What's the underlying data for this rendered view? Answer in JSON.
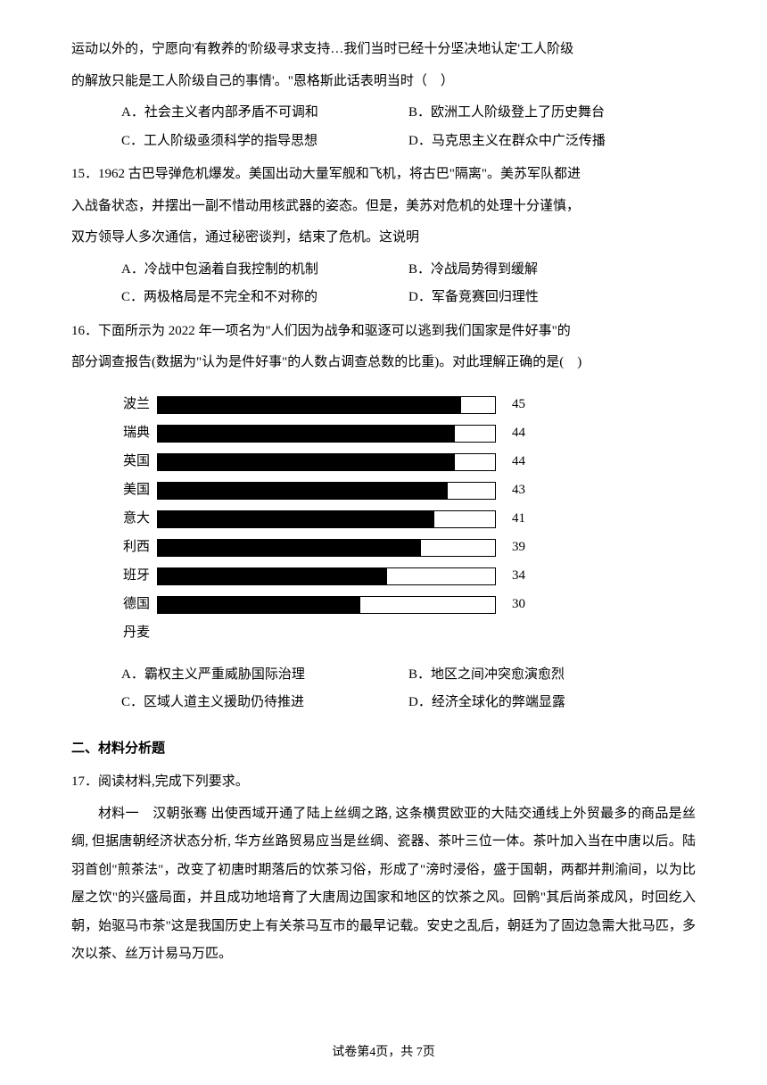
{
  "intro_lines": [
    "运动以外的，宁愿向'有教养的'阶级寻求支持…我们当时已经十分坚决地认定'工人阶级",
    "的解放只能是工人阶级自己的事情'。\"恩格斯此话表明当时（　）"
  ],
  "q14_options": {
    "a": "A．社会主义者内部矛盾不可调和",
    "b": "B．欧洲工人阶级登上了历史舞台",
    "c": "C．工人阶级亟须科学的指导思想",
    "d": "D．马克思主义在群众中广泛传播"
  },
  "q15_lines": [
    "15．1962 古巴导弹危机爆发。美国出动大量军舰和飞机，将古巴\"隔离\"。美苏军队都进",
    "入战备状态，并摆出一副不惜动用核武器的姿态。但是，美苏对危机的处理十分谨慎，",
    "双方领导人多次通信，通过秘密谈判，结束了危机。这说明"
  ],
  "q15_options": {
    "a": "A．冷战中包涵着自我控制的机制",
    "b": "B．冷战局势得到缓解",
    "c": "C．两极格局是不完全和不对称的",
    "d": "D．军备竞赛回归理性"
  },
  "q16_lines": [
    "16．下面所示为 2022 年一项名为\"人们因为战争和驱逐可以逃到我们国家是件好事\"的",
    "部分调查报告(数据为\"认为是件好事\"的人数占调查总数的比重)。对此理解正确的是(　)"
  ],
  "chart": {
    "max": 50,
    "track_width": 380,
    "bar_color": "#000000",
    "track_bg": "#ffffff",
    "border_color": "#000000",
    "label_fontsize": 15,
    "rows": [
      {
        "label": "波兰",
        "value": 45
      },
      {
        "label": "瑞典",
        "value": 44
      },
      {
        "label": "英国",
        "value": 44
      },
      {
        "label": "美国",
        "value": 43
      },
      {
        "label": "意大",
        "value": 41
      },
      {
        "label": "利西",
        "value": 39
      },
      {
        "label": "班牙",
        "value": 34
      },
      {
        "label": "德国",
        "value": 30
      },
      {
        "label": "丹麦",
        "value": null
      }
    ]
  },
  "q16_options": {
    "a": "A．霸权主义严重威胁国际治理",
    "b": "B．地区之间冲突愈演愈烈",
    "c": "C．区域人道主义援助仍待推进",
    "d": "D．经济全球化的弊端显露"
  },
  "section2_title": "二、材料分析题",
  "q17_head": "17．阅读材料,完成下列要求。",
  "q17_material_paras": [
    "材料一　汉朝张骞 出使西域开通了陆上丝绸之路, 这条横贯欧亚的大陆交通线上外贸最多的商品是丝绸, 但据唐朝经济状态分析, 华方丝路贸易应当是丝绸、瓷器、茶叶三位一体。茶叶加入当在中唐以后。陆羽首创\"煎茶法\"，改变了初唐时期落后的饮茶习俗，形成了\"滂时浸俗，盛于国朝，两都并荆渝间，以为比屋之饮\"的兴盛局面，并且成功地培育了大唐周边国家和地区的饮茶之风。回鹘\"其后尚茶成风，时回纥入朝，始驱马市茶\"这是我国历史上有关茶马互市的最早记载。安史之乱后，朝廷为了固边急需大批马匹，多次以茶、丝万计易马万匹。"
  ],
  "footer": "试卷第4页，共 7页"
}
